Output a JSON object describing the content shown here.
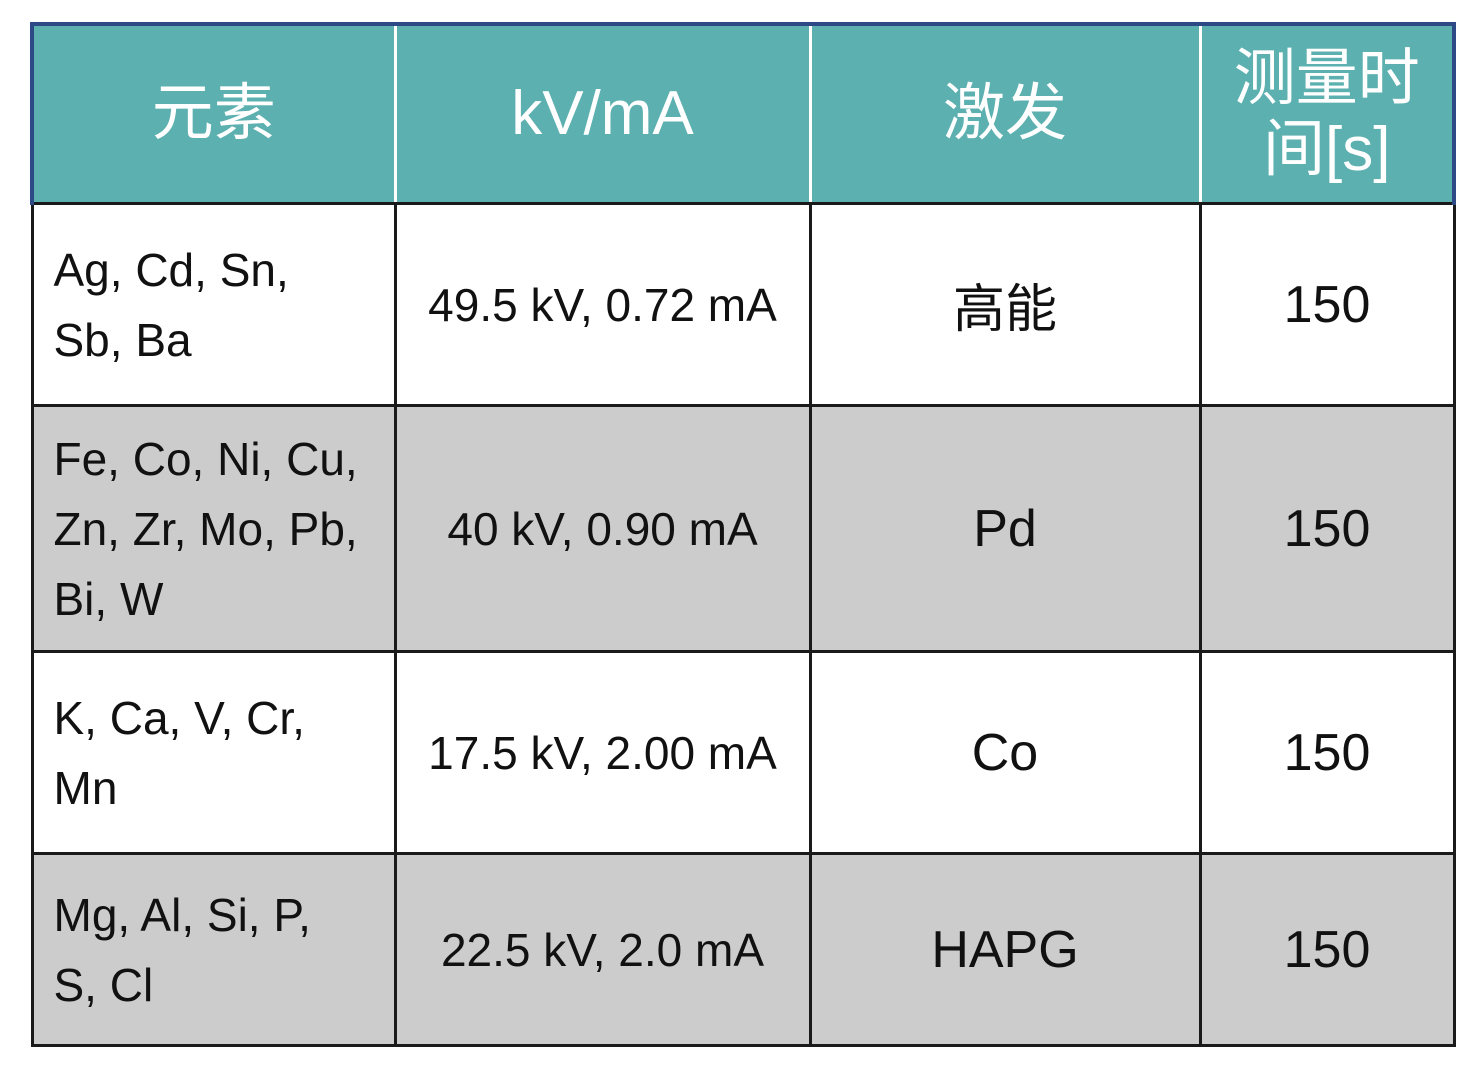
{
  "table": {
    "headers": [
      "元素",
      "kV/mA",
      "激发",
      "测量时间[s]"
    ],
    "rows": [
      {
        "elements": "Ag, Cd, Sn, Sb, Ba",
        "kv_ma": "49.5 kV, 0.72 mA",
        "excitation": "高能",
        "time": "150"
      },
      {
        "elements": "Fe, Co, Ni, Cu, Zn, Zr, Mo, Pb, Bi, W",
        "kv_ma": "40 kV, 0.90 mA",
        "excitation": "Pd",
        "time": "150"
      },
      {
        "elements": "K, Ca, V, Cr, Mn",
        "kv_ma": "17.5 kV, 2.00 mA",
        "excitation": "Co",
        "time": "150"
      },
      {
        "elements": "Mg, Al, Si, P, S, Cl",
        "kv_ma": "22.5 kV, 2.0 mA",
        "excitation": "HAPG",
        "time": "150"
      }
    ]
  },
  "colors": {
    "header_bg": "#5db0b0",
    "header_border": "#2e4a86",
    "alt_row": "#cccccc"
  }
}
